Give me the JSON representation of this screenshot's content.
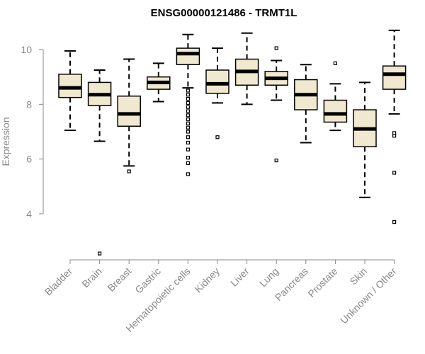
{
  "chart_data": {
    "type": "box",
    "title": "ENSG00000121486 - TRMT1L",
    "ylabel": "Expression",
    "xlabel": "",
    "ylim": [
      2.0,
      10.9
    ],
    "yticks": [
      4,
      6,
      8,
      10
    ],
    "grid": false,
    "legend": "none",
    "box_fill": "#f0e9d0",
    "categories": [
      "Bladder",
      "Brain",
      "Breast",
      "Gastric",
      "Hematopoietic cells",
      "Kidney",
      "Liver",
      "Lung",
      "Pancreas",
      "Prostate",
      "Skin",
      "Unknown / Other"
    ],
    "boxes": [
      {
        "category": "Bladder",
        "whisker_low": 7.05,
        "q1": 8.25,
        "median": 8.6,
        "q3": 9.1,
        "whisker_high": 9.95,
        "outliers": []
      },
      {
        "category": "Brain",
        "whisker_low": 6.65,
        "q1": 7.95,
        "median": 8.35,
        "q3": 8.8,
        "whisker_high": 9.25,
        "outliers": [
          2.55
        ]
      },
      {
        "category": "Breast",
        "whisker_low": 5.75,
        "q1": 7.2,
        "median": 7.65,
        "q3": 8.3,
        "whisker_high": 9.65,
        "outliers": [
          5.55
        ]
      },
      {
        "category": "Gastric",
        "whisker_low": 8.1,
        "q1": 8.55,
        "median": 8.8,
        "q3": 9.0,
        "whisker_high": 9.5,
        "outliers": []
      },
      {
        "category": "Hematopoietic cells",
        "whisker_low": 8.6,
        "q1": 9.45,
        "median": 9.85,
        "q3": 10.05,
        "whisker_high": 10.55,
        "outliers": [
          8.5,
          8.35,
          8.2,
          8.05,
          7.9,
          7.75,
          7.6,
          7.45,
          7.3,
          7.15,
          7.0,
          6.8,
          6.6,
          6.35,
          6.05,
          5.85,
          5.45
        ]
      },
      {
        "category": "Kidney",
        "whisker_low": 8.05,
        "q1": 8.4,
        "median": 8.75,
        "q3": 9.25,
        "whisker_high": 10.05,
        "outliers": [
          6.8
        ]
      },
      {
        "category": "Liver",
        "whisker_low": 8.0,
        "q1": 8.7,
        "median": 9.2,
        "q3": 9.65,
        "whisker_high": 10.6,
        "outliers": []
      },
      {
        "category": "Lung",
        "whisker_low": 8.15,
        "q1": 8.7,
        "median": 8.95,
        "q3": 9.2,
        "whisker_high": 9.6,
        "outliers": [
          10.05,
          5.95
        ]
      },
      {
        "category": "Pancreas",
        "whisker_low": 6.6,
        "q1": 7.8,
        "median": 8.35,
        "q3": 8.9,
        "whisker_high": 9.45,
        "outliers": []
      },
      {
        "category": "Prostate",
        "whisker_low": 7.05,
        "q1": 7.35,
        "median": 7.65,
        "q3": 8.15,
        "whisker_high": 8.75,
        "outliers": [
          9.5
        ]
      },
      {
        "category": "Skin",
        "whisker_low": 4.6,
        "q1": 6.45,
        "median": 7.1,
        "q3": 7.8,
        "whisker_high": 8.8,
        "outliers": []
      },
      {
        "category": "Unknown / Other",
        "whisker_low": 7.65,
        "q1": 8.55,
        "median": 9.1,
        "q3": 9.4,
        "whisker_high": 10.7,
        "outliers": [
          6.95,
          6.85,
          5.5,
          3.7
        ]
      }
    ]
  }
}
